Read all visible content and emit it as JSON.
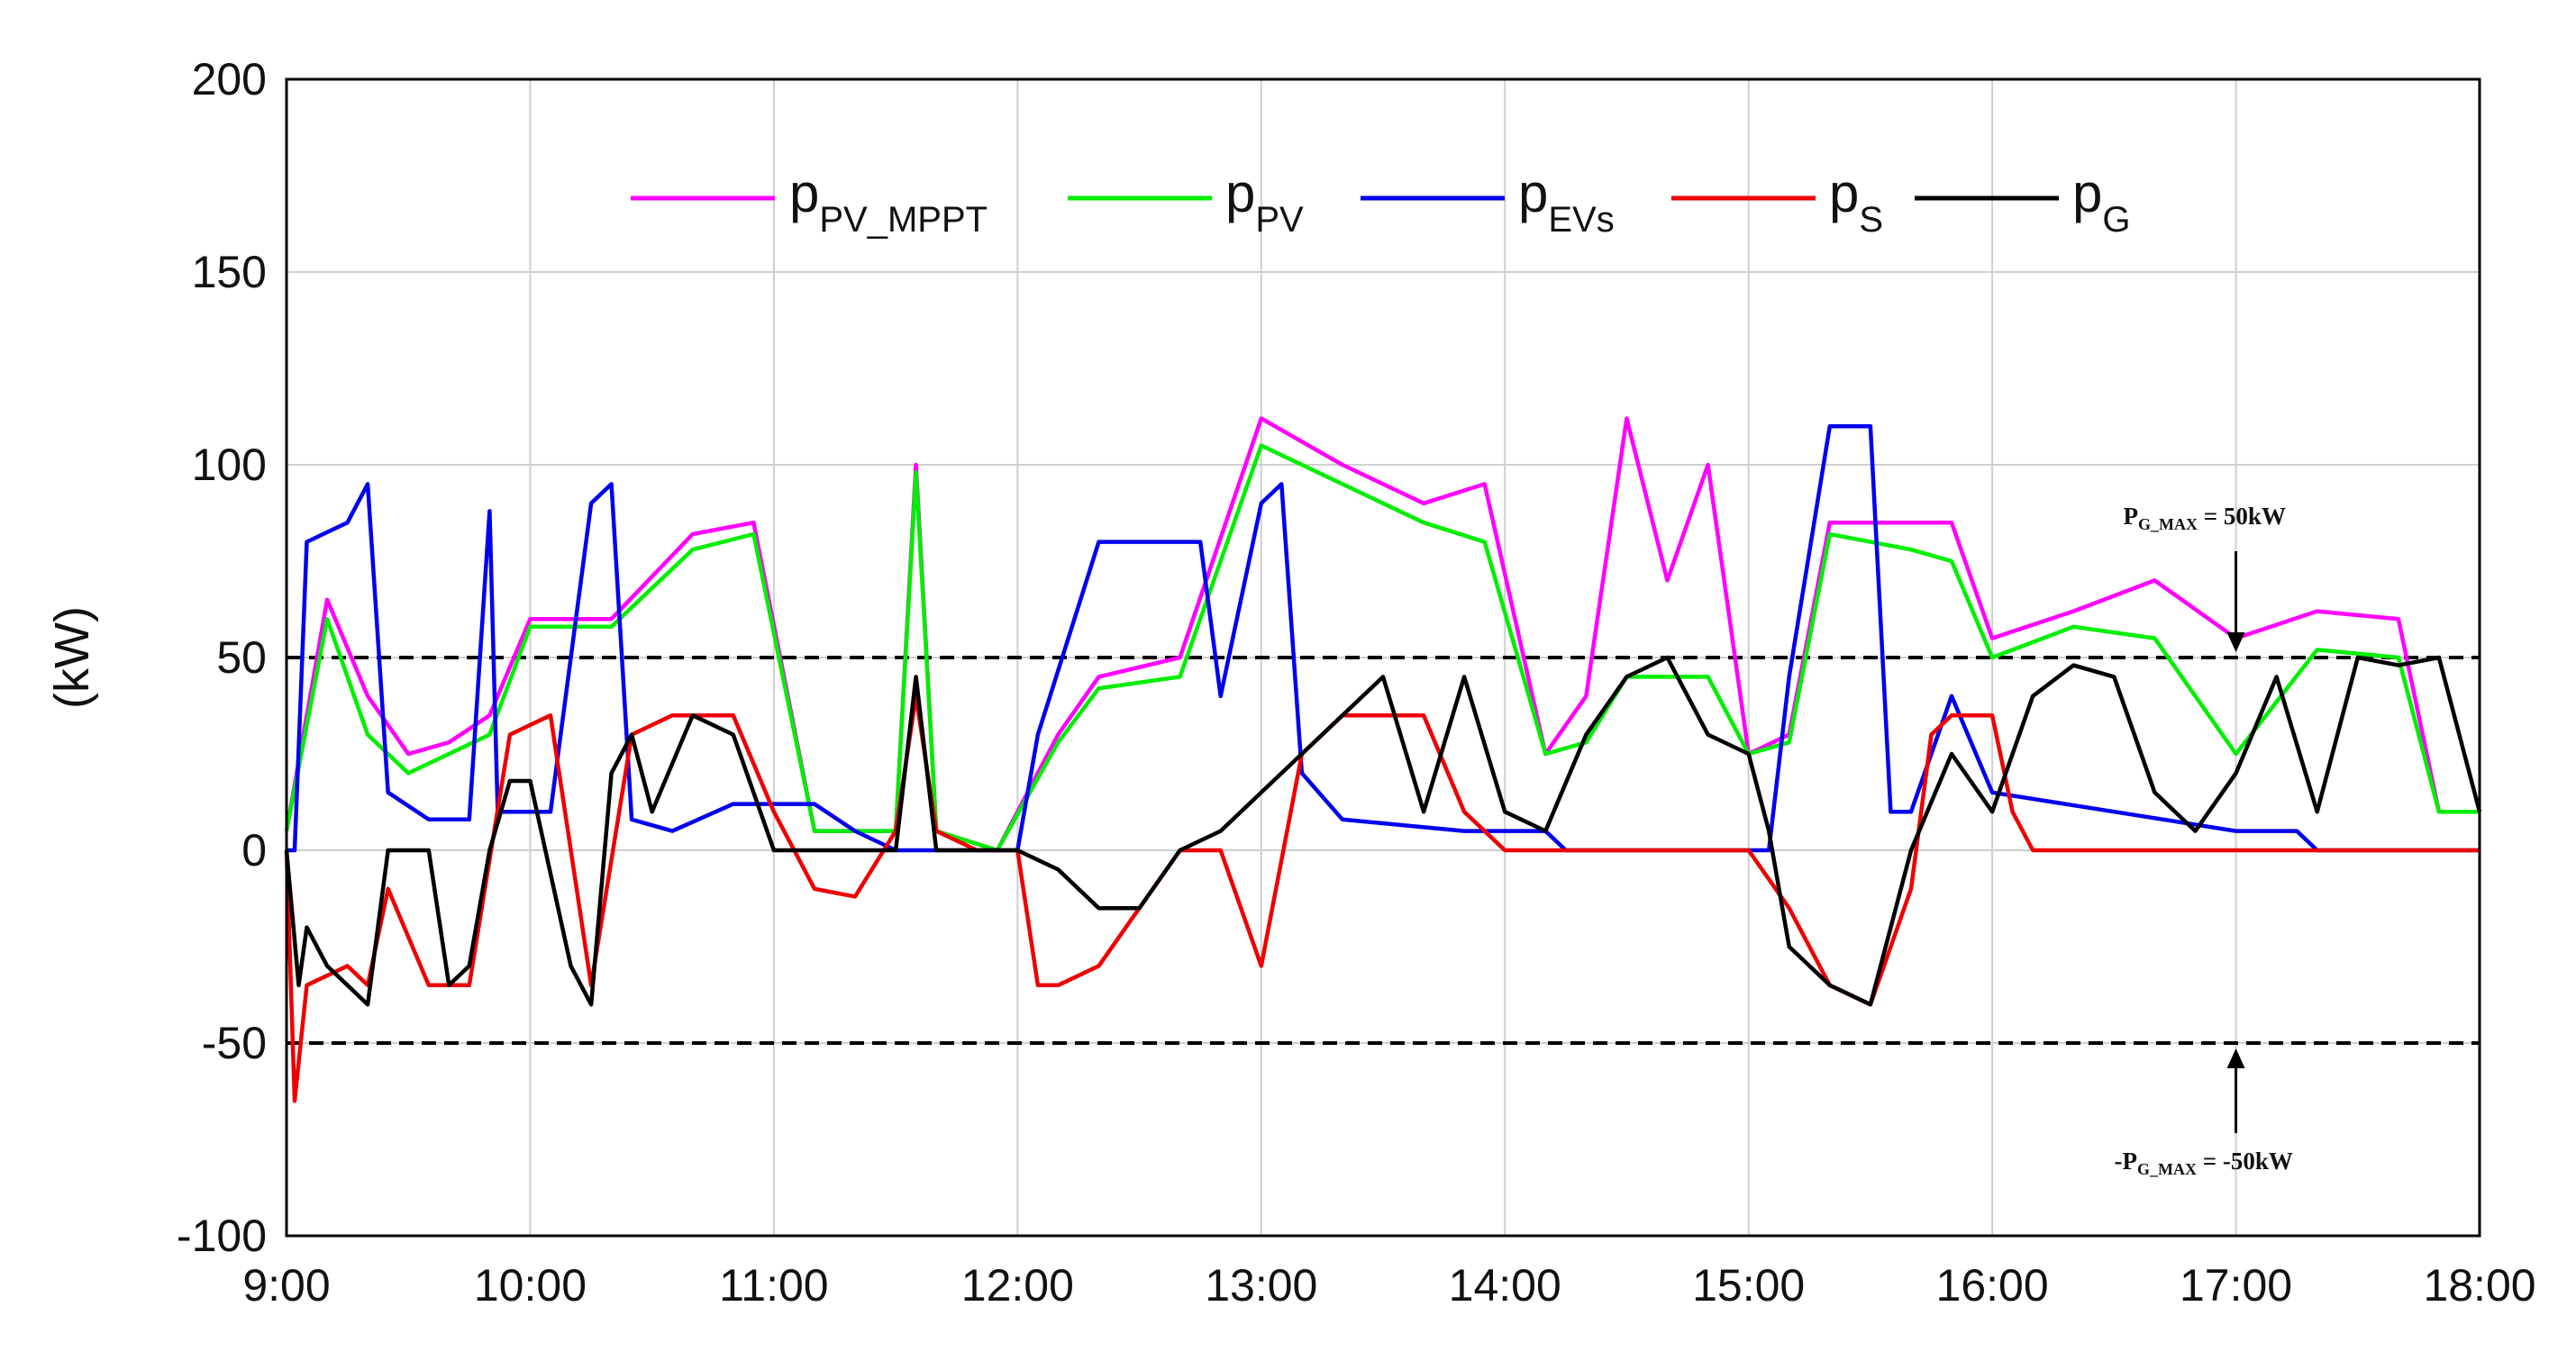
{
  "chart_data": {
    "type": "line",
    "title": "",
    "ylabel": "(kW)",
    "xlabel": "",
    "x_ticks": [
      "9:00",
      "10:00",
      "11:00",
      "12:00",
      "13:00",
      "14:00",
      "15:00",
      "16:00",
      "17:00",
      "18:00"
    ],
    "y_ticks": [
      200,
      150,
      100,
      50,
      0,
      -50,
      -100
    ],
    "ylim": [
      -100,
      200
    ],
    "xlim": [
      "9:00",
      "18:00"
    ],
    "grid": true,
    "legend_position": "top",
    "series": [
      {
        "name": "pPV_MPPT",
        "label_main": "p",
        "label_sub": "PV_MPPT",
        "color": "#ff00ff",
        "x": [
          "9:00",
          "9:10",
          "9:20",
          "9:30",
          "9:40",
          "9:50",
          "10:00",
          "10:20",
          "10:40",
          "10:55",
          "11:10",
          "11:30",
          "11:35",
          "11:40",
          "11:55",
          "12:10",
          "12:20",
          "12:40",
          "13:00",
          "13:20",
          "13:40",
          "13:55",
          "14:10",
          "14:20",
          "14:30",
          "14:40",
          "14:50",
          "15:00",
          "15:10",
          "15:20",
          "15:30",
          "15:40",
          "15:50",
          "16:00",
          "16:20",
          "16:40",
          "17:00",
          "17:20",
          "17:40",
          "17:50",
          "18:00"
        ],
        "y": [
          5,
          65,
          40,
          25,
          28,
          35,
          60,
          60,
          82,
          85,
          5,
          5,
          100,
          5,
          0,
          30,
          45,
          50,
          112,
          100,
          90,
          95,
          25,
          40,
          112,
          70,
          100,
          25,
          30,
          85,
          85,
          85,
          85,
          55,
          62,
          70,
          55,
          62,
          60,
          10,
          10
        ]
      },
      {
        "name": "pPV",
        "label_main": "p",
        "label_sub": "PV",
        "color": "#00ee00",
        "x": [
          "9:00",
          "9:10",
          "9:20",
          "9:30",
          "9:40",
          "9:50",
          "10:00",
          "10:20",
          "10:40",
          "10:55",
          "11:10",
          "11:30",
          "11:35",
          "11:40",
          "11:55",
          "12:10",
          "12:20",
          "12:40",
          "13:00",
          "13:20",
          "13:40",
          "13:55",
          "14:10",
          "14:20",
          "14:30",
          "14:40",
          "14:50",
          "15:00",
          "15:10",
          "15:20",
          "15:30",
          "15:40",
          "15:50",
          "16:00",
          "16:20",
          "16:40",
          "17:00",
          "17:20",
          "17:40",
          "17:50",
          "18:00"
        ],
        "y": [
          5,
          60,
          30,
          20,
          25,
          30,
          58,
          58,
          78,
          82,
          5,
          5,
          98,
          5,
          0,
          28,
          42,
          45,
          105,
          95,
          85,
          80,
          25,
          28,
          45,
          45,
          45,
          25,
          28,
          82,
          80,
          78,
          75,
          50,
          58,
          55,
          25,
          52,
          50,
          10,
          10
        ]
      },
      {
        "name": "pEVs",
        "label_main": "p",
        "label_sub": "EVs",
        "color": "#0000ee",
        "x": [
          "9:00",
          "9:02",
          "9:05",
          "9:15",
          "9:20",
          "9:25",
          "9:35",
          "9:45",
          "9:50",
          "9:52",
          "10:00",
          "10:05",
          "10:15",
          "10:20",
          "10:25",
          "10:35",
          "10:50",
          "11:10",
          "11:20",
          "11:30",
          "11:40",
          "12:00",
          "12:05",
          "12:20",
          "12:45",
          "12:50",
          "13:00",
          "13:05",
          "13:10",
          "13:20",
          "13:50",
          "14:00",
          "14:10",
          "14:15",
          "14:30",
          "14:50",
          "15:05",
          "15:10",
          "15:20",
          "15:30",
          "15:35",
          "15:40",
          "15:50",
          "16:00",
          "16:30",
          "17:00",
          "17:15",
          "17:20",
          "17:30",
          "18:00"
        ],
        "y": [
          0,
          0,
          80,
          85,
          95,
          15,
          8,
          8,
          88,
          10,
          10,
          10,
          90,
          95,
          8,
          5,
          12,
          12,
          5,
          0,
          0,
          0,
          30,
          80,
          80,
          40,
          90,
          95,
          20,
          8,
          5,
          5,
          5,
          0,
          0,
          0,
          0,
          45,
          110,
          110,
          10,
          10,
          40,
          15,
          10,
          5,
          5,
          0,
          0,
          0
        ]
      },
      {
        "name": "pS",
        "label_main": "p",
        "label_sub": "S",
        "color": "#ee0000",
        "x": [
          "9:00",
          "9:02",
          "9:05",
          "9:15",
          "9:20",
          "9:25",
          "9:35",
          "9:45",
          "9:55",
          "10:05",
          "10:15",
          "10:25",
          "10:35",
          "10:50",
          "11:00",
          "11:10",
          "11:20",
          "11:30",
          "11:35",
          "11:40",
          "11:50",
          "12:00",
          "12:05",
          "12:10",
          "12:20",
          "12:40",
          "12:50",
          "13:00",
          "13:10",
          "13:20",
          "13:40",
          "13:50",
          "14:00",
          "14:10",
          "14:20",
          "15:00",
          "15:10",
          "15:20",
          "15:30",
          "15:40",
          "15:45",
          "15:50",
          "16:00",
          "16:05",
          "16:10",
          "16:20",
          "17:00",
          "18:00"
        ],
        "y": [
          0,
          -65,
          -35,
          -30,
          -35,
          -10,
          -35,
          -35,
          30,
          35,
          -35,
          30,
          35,
          35,
          10,
          -10,
          -12,
          5,
          40,
          5,
          0,
          0,
          -35,
          -35,
          -30,
          0,
          0,
          -30,
          25,
          35,
          35,
          10,
          0,
          0,
          0,
          0,
          -15,
          -35,
          -40,
          -10,
          30,
          35,
          35,
          10,
          0,
          0,
          0,
          0
        ]
      },
      {
        "name": "pG",
        "label_main": "p",
        "label_sub": "G",
        "color": "#000000",
        "x": [
          "9:00",
          "9:03",
          "9:05",
          "9:10",
          "9:15",
          "9:20",
          "9:25",
          "9:35",
          "9:40",
          "9:45",
          "9:50",
          "9:55",
          "10:00",
          "10:10",
          "10:15",
          "10:20",
          "10:25",
          "10:30",
          "10:40",
          "10:50",
          "11:00",
          "11:10",
          "11:20",
          "11:30",
          "11:35",
          "11:40",
          "11:50",
          "12:00",
          "12:10",
          "12:20",
          "12:30",
          "12:40",
          "12:50",
          "13:00",
          "13:10",
          "13:20",
          "13:30",
          "13:40",
          "13:50",
          "14:00",
          "14:10",
          "14:20",
          "14:30",
          "14:40",
          "14:50",
          "15:00",
          "15:05",
          "15:10",
          "15:20",
          "15:30",
          "15:40",
          "15:50",
          "16:00",
          "16:10",
          "16:20",
          "16:30",
          "16:40",
          "16:50",
          "17:00",
          "17:10",
          "17:20",
          "17:30",
          "17:40",
          "17:50",
          "18:00"
        ],
        "y": [
          0,
          -35,
          -20,
          -30,
          -35,
          -40,
          0,
          0,
          -35,
          -30,
          0,
          18,
          18,
          -30,
          -40,
          20,
          30,
          10,
          35,
          30,
          0,
          0,
          0,
          0,
          45,
          0,
          0,
          0,
          -5,
          -15,
          -15,
          0,
          5,
          15,
          25,
          35,
          45,
          10,
          45,
          10,
          5,
          30,
          45,
          50,
          30,
          25,
          5,
          -25,
          -35,
          -40,
          0,
          25,
          10,
          40,
          48,
          45,
          15,
          5,
          20,
          45,
          10,
          50,
          48,
          50,
          10
        ]
      }
    ],
    "reference_lines": [
      {
        "y": 50,
        "style": "dashed",
        "color": "#000000"
      },
      {
        "y": -50,
        "style": "dashed",
        "color": "#000000"
      }
    ],
    "annotations": [
      {
        "main": "P",
        "sub": "G_MAX",
        "suffix": " = 50kW",
        "x": "17:00",
        "y": 50
      },
      {
        "main": "-P",
        "sub": "G_MAX",
        "suffix": " = -50kW",
        "x": "17:00",
        "y": -50
      }
    ]
  }
}
